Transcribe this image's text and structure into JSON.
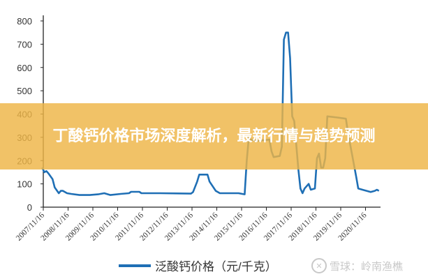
{
  "chart_data": {
    "type": "line",
    "title": "",
    "xlabel": "",
    "ylabel": "",
    "ylim": [
      0,
      800
    ],
    "yticks": [
      0,
      100,
      200,
      300,
      400,
      500,
      600,
      700,
      800
    ],
    "xtick_labels": [
      "2007/11/16",
      "2008/11/16",
      "2009/11/16",
      "2010/11/16",
      "2011/11/16",
      "2012/11/16",
      "2013/11/16",
      "2014/11/16",
      "2015/11/16",
      "2016/11/16",
      "2017/11/16",
      "2018/11/16",
      "2019/11/16",
      "2020/11/16"
    ],
    "grid": false,
    "legend_position": "bottom",
    "series": [
      {
        "name": "泛酸钙价格（元/千克）",
        "color": "#1f6fb5",
        "points": [
          [
            "2007-11",
            170
          ],
          [
            "2007-12",
            150
          ],
          [
            "2008-01",
            155
          ],
          [
            "2008-02",
            145
          ],
          [
            "2008-04",
            120
          ],
          [
            "2008-05",
            85
          ],
          [
            "2008-07",
            60
          ],
          [
            "2008-08",
            70
          ],
          [
            "2008-09",
            70
          ],
          [
            "2008-11",
            60
          ],
          [
            "2009-01",
            57
          ],
          [
            "2009-05",
            52
          ],
          [
            "2009-10",
            52
          ],
          [
            "2010-02",
            55
          ],
          [
            "2010-05",
            60
          ],
          [
            "2010-08",
            52
          ],
          [
            "2011-01",
            57
          ],
          [
            "2011-05",
            60
          ],
          [
            "2011-06",
            66
          ],
          [
            "2011-10",
            66
          ],
          [
            "2011-11",
            60
          ],
          [
            "2012-08",
            60
          ],
          [
            "2013-11",
            58
          ],
          [
            "2013-12",
            65
          ],
          [
            "2014-02",
            110
          ],
          [
            "2014-03",
            140
          ],
          [
            "2014-07",
            140
          ],
          [
            "2014-08",
            110
          ],
          [
            "2014-11",
            70
          ],
          [
            "2015-01",
            60
          ],
          [
            "2015-10",
            60
          ],
          [
            "2016-01",
            55
          ],
          [
            "2016-02",
            200
          ],
          [
            "2016-03",
            300
          ],
          [
            "2016-04",
            290
          ],
          [
            "2016-07",
            285
          ],
          [
            "2017-01",
            290
          ],
          [
            "2017-02",
            240
          ],
          [
            "2017-03",
            215
          ],
          [
            "2017-06",
            220
          ],
          [
            "2017-07",
            260
          ],
          [
            "2017-08",
            720
          ],
          [
            "2017-09",
            750
          ],
          [
            "2017-10",
            750
          ],
          [
            "2017-11",
            640
          ],
          [
            "2017-12",
            390
          ],
          [
            "2018-01",
            370
          ],
          [
            "2018-03",
            160
          ],
          [
            "2018-04",
            80
          ],
          [
            "2018-05",
            60
          ],
          [
            "2018-06",
            80
          ],
          [
            "2018-08",
            100
          ],
          [
            "2018-09",
            75
          ],
          [
            "2018-11",
            80
          ],
          [
            "2018-12",
            210
          ],
          [
            "2019-01",
            230
          ],
          [
            "2019-02",
            170
          ],
          [
            "2019-03",
            170
          ],
          [
            "2019-04",
            210
          ],
          [
            "2019-05",
            390
          ],
          [
            "2019-10",
            385
          ],
          [
            "2020-02",
            380
          ],
          [
            "2020-03",
            320
          ],
          [
            "2020-07",
            130
          ],
          [
            "2020-08",
            80
          ],
          [
            "2020-10",
            75
          ],
          [
            "2021-02",
            65
          ],
          [
            "2021-04",
            70
          ],
          [
            "2021-05",
            75
          ],
          [
            "2021-06",
            70
          ]
        ]
      }
    ]
  },
  "legend": {
    "label": "泛酸钙价格（元/千克）",
    "color": "#1f6fb5"
  },
  "watermark": {
    "text": "雪球：岭南渔樵",
    "icon": "xueqiu-logo-icon"
  },
  "banner": {
    "title": "丁酸钙价格市场深度解析，最新行情与趋势预测",
    "color": "#eeb446"
  }
}
